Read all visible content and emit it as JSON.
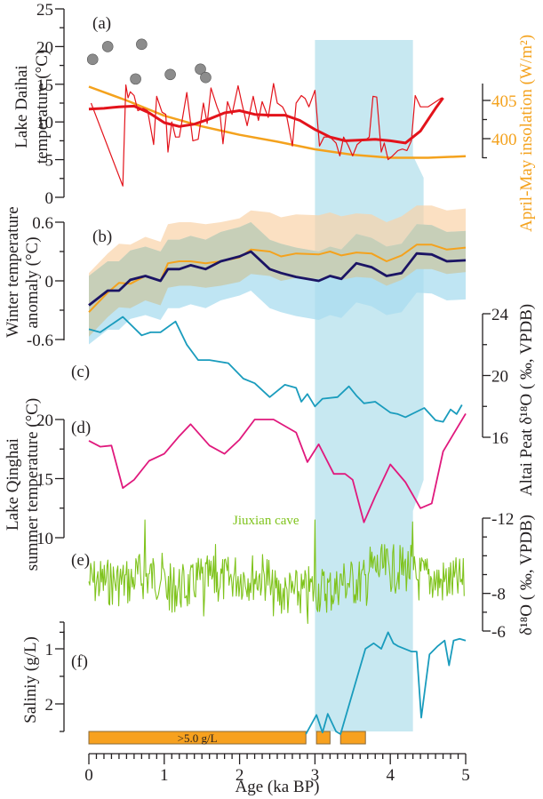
{
  "chart_data": [
    {
      "panel": "(a)",
      "type": "line",
      "xlabel": "Age (ka BP)",
      "xlim": [
        0,
        5
      ],
      "ylabel": "Lake Daihai temperature (°C)",
      "ylim": [
        0,
        25
      ],
      "yticks": [
        "0",
        "5",
        "10",
        "15",
        "20",
        "25"
      ],
      "ylabel_right": "April-May insolation (W/m²)",
      "yticks_right": [
        "400",
        "405"
      ],
      "series": [
        {
          "name": "Lake Daihai temperature (raw)",
          "color": "#e3131b",
          "x": [
            0.03,
            0.45,
            0.49,
            0.52,
            0.55,
            0.6,
            0.65,
            0.72,
            0.78,
            0.86,
            0.9,
            0.97,
            1.02,
            1.05,
            1.1,
            1.15,
            1.2,
            1.3,
            1.38,
            1.45,
            1.52,
            1.57,
            1.62,
            1.7,
            1.74,
            1.78,
            1.84,
            1.9,
            1.98,
            2.03,
            2.1,
            2.18,
            2.25,
            2.3,
            2.38,
            2.45,
            2.5,
            2.57,
            2.62,
            2.7,
            2.75,
            2.82,
            2.87,
            2.92,
            3.0,
            3.06,
            3.12,
            3.2,
            3.28,
            3.33,
            3.38,
            3.44,
            3.5,
            3.56,
            3.62,
            3.67,
            3.72,
            3.77,
            3.82,
            3.88,
            3.92,
            3.97,
            4.03,
            4.1,
            4.16,
            4.22,
            4.28,
            4.33,
            4.4,
            4.5,
            4.68
          ],
          "y": [
            12.5,
            1.5,
            14.9,
            13.2,
            14,
            13.5,
            11.5,
            11.8,
            11.5,
            7,
            13.4,
            11.3,
            11,
            6,
            10,
            8,
            8,
            13.9,
            7.5,
            7.7,
            12.5,
            9.8,
            14.5,
            12,
            11,
            7.1,
            12.7,
            11,
            14.8,
            12.5,
            9.5,
            13.4,
            10.2,
            12.7,
            10.6,
            15.1,
            12.5,
            12,
            11,
            6.8,
            12.5,
            13.5,
            13.1,
            12,
            14.2,
            6.8,
            8,
            8,
            7.2,
            5.5,
            8,
            6.9,
            5.5,
            7,
            7.5,
            7.6,
            8,
            13.4,
            13.3,
            6,
            7.2,
            5,
            5.5,
            6.2,
            6.4,
            6.2,
            7.5,
            13.5,
            12,
            12,
            13.2
          ]
        },
        {
          "name": "Lake Daihai temperature (smoothed)",
          "color": "#e3131b",
          "x": [
            0.0,
            0.2,
            0.4,
            0.6,
            0.8,
            1.0,
            1.2,
            1.4,
            1.6,
            1.8,
            2.0,
            2.2,
            2.4,
            2.6,
            2.8,
            3.0,
            3.2,
            3.4,
            3.6,
            3.8,
            4.0,
            4.2,
            4.4,
            4.6,
            4.7
          ],
          "y": [
            11.7,
            11.8,
            12.0,
            12.1,
            11.2,
            9.9,
            9.4,
            9.7,
            10.4,
            11.2,
            11.5,
            11.0,
            10.9,
            10.9,
            10.2,
            9.0,
            8.0,
            7.5,
            7.6,
            7.7,
            7.5,
            7.2,
            8.8,
            11.8,
            13.2
          ]
        },
        {
          "name": "April-May insolation",
          "color": "#f4a21d",
          "axis": "right",
          "x": [
            0,
            0.5,
            1,
            1.5,
            2,
            2.5,
            3,
            3.5,
            4,
            4.5,
            5
          ],
          "y": [
            406.8,
            405.0,
            403.0,
            401.6,
            400.5,
            399.6,
            398.6,
            397.9,
            397.5,
            397.5,
            397.7
          ]
        }
      ],
      "scatter": {
        "name": "Lake Daihai temperature (other proxy)",
        "color": "#8c8c8c",
        "x": [
          0.05,
          0.25,
          0.62,
          0.7,
          1.08,
          1.48,
          1.55
        ],
        "y": [
          18.3,
          20,
          15.7,
          20.3,
          16.3,
          17,
          15.9
        ]
      }
    },
    {
      "panel": "(b)",
      "type": "area",
      "ylabel": "Winter temperature anomaly (°C)",
      "ylim": [
        -0.6,
        0.6
      ],
      "yticks": [
        "-0.6",
        "0",
        "0.6"
      ],
      "series": [
        {
          "name": "Winter temperature anomaly (navy)",
          "color": "#1b1464",
          "x": [
            0,
            0.25,
            0.4,
            0.55,
            0.75,
            0.95,
            1.05,
            1.2,
            1.35,
            1.55,
            1.75,
            2.0,
            2.15,
            2.4,
            2.55,
            2.75,
            3.05,
            3.2,
            3.35,
            3.55,
            3.75,
            3.95,
            4.15,
            4.35,
            4.55,
            4.75,
            5.0
          ],
          "y": [
            -0.25,
            -0.1,
            -0.1,
            0.01,
            0.05,
            0.0,
            0.12,
            0.12,
            0.16,
            0.12,
            0.2,
            0.25,
            0.3,
            0.12,
            0.08,
            0.04,
            0.0,
            0.05,
            0.02,
            0.18,
            0.14,
            0.05,
            0.08,
            0.28,
            0.27,
            0.2,
            0.21
          ],
          "band": [
            0.4,
            0.3
          ]
        },
        {
          "name": "Winter temperature anomaly (orange)",
          "color": "#f4a21d",
          "x": [
            0,
            0.25,
            0.4,
            0.55,
            0.75,
            0.95,
            1.05,
            1.2,
            1.35,
            1.55,
            1.75,
            2.0,
            2.15,
            2.4,
            2.55,
            2.75,
            3.05,
            3.2,
            3.35,
            3.55,
            3.75,
            3.95,
            4.15,
            4.35,
            4.55,
            4.75,
            5.0
          ],
          "y": [
            -0.32,
            -0.12,
            -0.02,
            -0.03,
            0.05,
            0.0,
            0.18,
            0.2,
            0.2,
            0.18,
            0.2,
            0.24,
            0.32,
            0.3,
            0.25,
            0.28,
            0.27,
            0.3,
            0.26,
            0.29,
            0.28,
            0.2,
            0.26,
            0.37,
            0.37,
            0.32,
            0.34
          ],
          "band": [
            0.25,
            0.4
          ]
        }
      ]
    },
    {
      "panel": "(c)",
      "type": "line",
      "ylabel_right": "Altai Peat δ¹⁸O (‰, VPDB)",
      "ylim": [
        16,
        24
      ],
      "yticks_right": [
        "16",
        "20",
        "24"
      ],
      "series": [
        {
          "name": "Altai Peat δ18O",
          "color": "#1a9cbd",
          "x": [
            0.0,
            0.15,
            0.45,
            0.7,
            0.82,
            0.95,
            1.15,
            1.3,
            1.45,
            1.6,
            1.85,
            2.05,
            2.2,
            2.4,
            2.6,
            2.75,
            2.82,
            2.9,
            3.0,
            3.1,
            3.3,
            3.45,
            3.55,
            3.65,
            3.8,
            4.0,
            4.1,
            4.2,
            4.45,
            4.6,
            4.7,
            4.8,
            4.88,
            4.95
          ],
          "y": [
            23.0,
            22.8,
            23.8,
            22.6,
            22.8,
            22.8,
            23.5,
            22.0,
            21.0,
            21.0,
            20.8,
            19.8,
            19.5,
            18.6,
            19.4,
            19.2,
            18.3,
            18.8,
            18.0,
            18.5,
            18.6,
            19.3,
            18.7,
            18.2,
            18.3,
            17.6,
            17.5,
            17.3,
            17.9,
            17.1,
            17.0,
            17.8,
            17.5,
            18.1
          ]
        }
      ]
    },
    {
      "panel": "(d)",
      "type": "line",
      "ylabel": "Lake Qinghai summer temperature (°C)",
      "ylim": [
        10,
        20
      ],
      "yticks": [
        "10",
        "15",
        "20"
      ],
      "series": [
        {
          "name": "Lake Qinghai summer temperature",
          "color": "#e0197d",
          "x": [
            0.0,
            0.15,
            0.3,
            0.45,
            0.6,
            0.8,
            1.0,
            1.2,
            1.35,
            1.6,
            1.8,
            2.0,
            2.2,
            2.45,
            2.75,
            2.9,
            3.05,
            3.25,
            3.4,
            3.5,
            3.65,
            3.8,
            4.0,
            4.2,
            4.4,
            4.55,
            4.7,
            5.0
          ],
          "y": [
            18.2,
            17.7,
            17.8,
            14.2,
            14.9,
            16.5,
            17.1,
            18.6,
            19.6,
            17.8,
            17.1,
            18.3,
            20.0,
            20.0,
            18.9,
            16.4,
            17.9,
            15.4,
            15.4,
            14.9,
            11.3,
            13.5,
            16.2,
            14.7,
            12.5,
            12.9,
            17.3,
            20.5
          ]
        }
      ]
    },
    {
      "panel": "(e)",
      "type": "line",
      "annotation": "Jiuxian cave",
      "ylabel_right": "δ¹⁸O (‰, VPDB)",
      "ylim": [
        -6,
        -12
      ],
      "yticks_right": [
        "-12",
        "-8",
        "-6"
      ],
      "series": [
        {
          "name": "Jiuxian cave δ18O",
          "color": "#7fc31c",
          "note": "high-frequency record, ~5 ka"
        }
      ]
    },
    {
      "panel": "(f)",
      "type": "line",
      "ylabel": "Saliniy (g/L)",
      "ylim": [
        2.5,
        0.5
      ],
      "yticks": [
        "1",
        "2"
      ],
      "bars": [
        {
          "label": ">5.0 g/L",
          "x0": 0.0,
          "x1": 2.88
        },
        {
          "label": "",
          "x0": 3.02,
          "x1": 3.2
        },
        {
          "label": "",
          "x0": 3.34,
          "x1": 3.67
        }
      ],
      "series": [
        {
          "name": "Salinity",
          "color": "#1a9cbd",
          "x": [
            2.88,
            3.02,
            3.1,
            3.17,
            3.28,
            3.34,
            3.67,
            3.78,
            3.88,
            3.97,
            4.04,
            4.1,
            4.28,
            4.35,
            4.41,
            4.52,
            4.63,
            4.72,
            4.78,
            4.84,
            4.92,
            5.0
          ],
          "y": [
            2.72,
            2.2,
            2.52,
            2.18,
            2.5,
            2.72,
            1.0,
            0.9,
            1.0,
            0.7,
            0.9,
            0.95,
            1.05,
            1.05,
            2.25,
            1.1,
            0.95,
            0.85,
            1.3,
            0.85,
            0.82,
            0.85
          ]
        }
      ]
    },
    {
      "xaxis": {
        "label": "Age (ka BP)",
        "ticks": [
          "0",
          "1",
          "2",
          "3",
          "4",
          "5"
        ],
        "range": [
          0,
          5
        ]
      },
      "highlight_band": {
        "x0": 3.0,
        "x1": 4.3,
        "color": "#c7e8f1"
      }
    }
  ],
  "labels": {
    "a": "(a)",
    "b": "(b)",
    "c": "(c)",
    "d": "(d)",
    "e": "(e)",
    "f": "(f)",
    "ylab_a1": "Lake Daihai",
    "ylab_a2": "temperature (°C)",
    "ylab_a_right": "April-May insolation (W/m²)",
    "ylab_b1": "Winter temperature",
    "ylab_b2": "anomaly (°C)",
    "ylab_c_right": "Altai Peat  δ¹⁸O ( ‰, VPDB)",
    "ylab_d1": "Lake Qinghai",
    "ylab_d2": "summer temperature (°C)",
    "ylab_e_right": "δ¹⁸O ( ‰, VPDB)",
    "ylab_f": "Saliniy (g/L)",
    "xlab": "Age (ka BP)",
    "cave": "Jiuxian cave",
    "bar": ">5.0 g/L"
  }
}
